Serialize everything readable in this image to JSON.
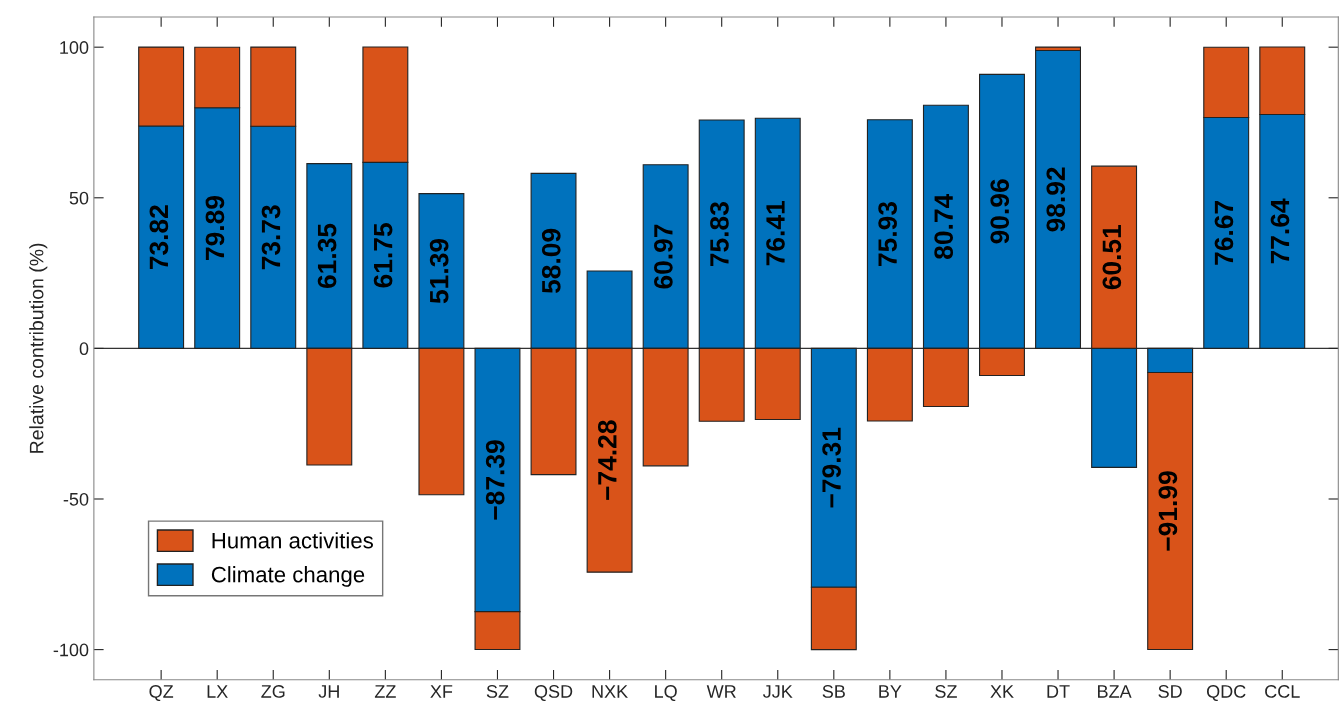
{
  "chart_data": {
    "type": "bar",
    "stacked": true,
    "ylabel": "Relative contribution (%)",
    "categories": [
      "QZ",
      "LX",
      "ZG",
      "JH",
      "ZZ",
      "XF",
      "SZ",
      "QSD",
      "NXK",
      "LQ",
      "WR",
      "JJK",
      "SB",
      "BY",
      "SZ",
      "XK",
      "DT",
      "BZA",
      "SD",
      "QDC",
      "CCL"
    ],
    "series": [
      {
        "name": "Climate change",
        "color": "#0072bd",
        "values": [
          73.82,
          79.89,
          73.73,
          61.35,
          61.75,
          51.39,
          -87.39,
          58.09,
          25.7,
          60.97,
          75.83,
          76.41,
          -79.31,
          75.93,
          80.74,
          90.96,
          98.92,
          -39.5,
          -8.0,
          76.67,
          77.64
        ],
        "value_labels": [
          "73.82",
          "79.89",
          "73.73",
          "61.35",
          "61.75",
          "51.39",
          "−87.39",
          "58.09",
          null,
          "60.97",
          "75.83",
          "76.41",
          "−79.31",
          "75.93",
          "80.74",
          "90.96",
          "98.92",
          null,
          null,
          "76.67",
          "77.64"
        ]
      },
      {
        "name": "Human activities",
        "color": "#d95319",
        "values": [
          26.2,
          20.1,
          26.3,
          -38.7,
          38.3,
          -48.6,
          -12.6,
          -41.9,
          -74.28,
          -39.0,
          -24.2,
          -23.6,
          -20.7,
          -24.1,
          -19.3,
          -9.0,
          1.1,
          60.51,
          -91.99,
          23.3,
          22.4
        ],
        "value_labels": [
          null,
          null,
          null,
          null,
          null,
          null,
          null,
          null,
          "−74.28",
          null,
          null,
          null,
          null,
          null,
          null,
          null,
          null,
          "60.51",
          "−91.99",
          null,
          null
        ]
      }
    ],
    "ylim": [
      -110,
      110
    ],
    "yticks": [
      -100,
      -50,
      0,
      50,
      100
    ],
    "ref_lines": [
      {
        "axis": "y",
        "value": 0
      }
    ],
    "legend": "bottom left"
  }
}
